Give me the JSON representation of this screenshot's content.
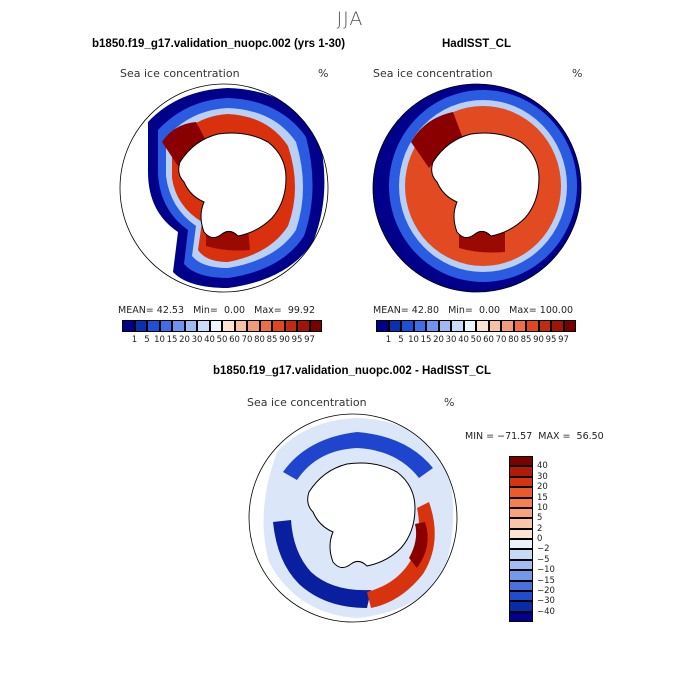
{
  "season": "JJA",
  "panels": [
    {
      "title": "b1850.f19_g17.validation_nuopc.002 (yrs 1-30)",
      "variable": "Sea ice concentration",
      "units": "%",
      "mean_label": "MEAN=",
      "mean_value": "42.53",
      "min_label": "Min=",
      "min_value": "0.00",
      "max_label": "Max=",
      "max_value": "99.92"
    },
    {
      "title": "HadISST_CL",
      "variable": "Sea ice concentration",
      "units": "%",
      "mean_label": "MEAN=",
      "mean_value": "42.80",
      "min_label": "Min=",
      "min_value": "0.00",
      "max_label": "Max=",
      "max_value": "100.00"
    }
  ],
  "abs_colorbar": {
    "labels": [
      "1",
      "5",
      "10",
      "15",
      "20",
      "30",
      "40",
      "50",
      "60",
      "70",
      "80",
      "85",
      "90",
      "95",
      "97"
    ],
    "colors": [
      "#00008b",
      "#0a2fb0",
      "#1e4fd8",
      "#3f6fe8",
      "#6d94f0",
      "#9dbaf4",
      "#c9dcf8",
      "#eef4fb",
      "#fbe2d2",
      "#f7c1a3",
      "#f39a77",
      "#ee6f47",
      "#e2461f",
      "#c42a0d",
      "#a11406",
      "#7a0000"
    ]
  },
  "diff_panel": {
    "title": "b1850.f19_g17.validation_nuopc.002 - HadISST_CL",
    "variable": "Sea ice concentration",
    "units": "%",
    "minmax": "MIN = −71.57  MAX =  56.50"
  },
  "diff_colorbar": {
    "labels": [
      "40",
      "30",
      "20",
      "15",
      "10",
      "5",
      "2",
      "0",
      "−2",
      "−5",
      "−10",
      "−15",
      "−20",
      "−30",
      "−40"
    ],
    "colors": [
      "#7a0000",
      "#b01a06",
      "#d8330f",
      "#ec5a2a",
      "#f47f50",
      "#f8a37c",
      "#fbc6a8",
      "#fde3d2",
      "#eaf2fb",
      "#c7daf5",
      "#9fbdf0",
      "#7199e8",
      "#4772de",
      "#204ccf",
      "#0a2aa8",
      "#00008b"
    ]
  }
}
